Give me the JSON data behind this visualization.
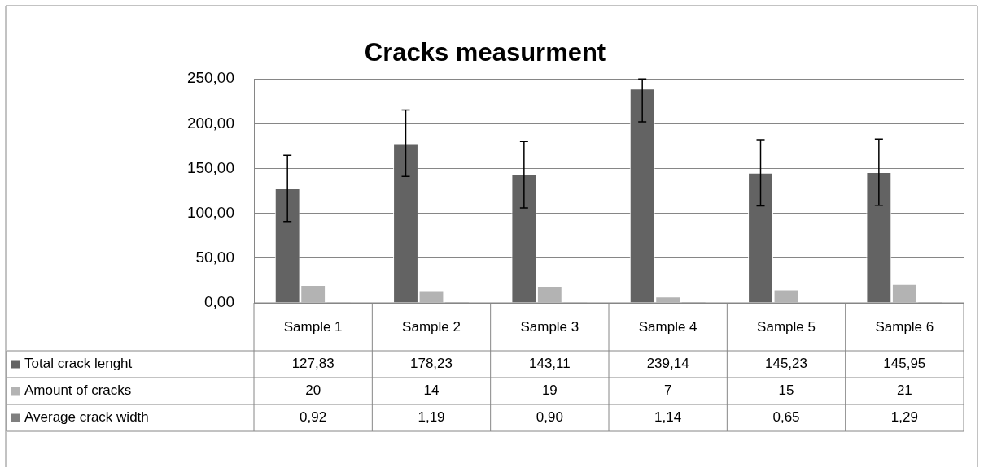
{
  "chart_data": {
    "type": "bar",
    "title": "Cracks measurment",
    "categories": [
      "Sample 1",
      "Sample 2",
      "Sample 3",
      "Sample 4",
      "Sample 5",
      "Sample 6"
    ],
    "series": [
      {
        "name": "Total crack lenght",
        "color": "#636363",
        "values": [
          127.83,
          178.23,
          143.11,
          239.14,
          145.23,
          145.95
        ],
        "errors": [
          37,
          37,
          37,
          [
            202.14,
            250
          ],
          37,
          37
        ],
        "value_labels": [
          "127,83",
          "178,23",
          "143,11",
          "239,14",
          "145,23",
          "145,95"
        ]
      },
      {
        "name": "Amount of cracks",
        "color": "#b3b3b3",
        "values": [
          20,
          14,
          19,
          7,
          15,
          21
        ],
        "value_labels": [
          "20",
          "14",
          "19",
          "7",
          "15",
          "21"
        ]
      },
      {
        "name": "Average crack width",
        "color": "#7f7f7f",
        "values": [
          0.92,
          1.19,
          0.9,
          1.14,
          0.65,
          1.29
        ],
        "value_labels": [
          "0,92",
          "1,19",
          "0,90",
          "1,14",
          "0,65",
          "1,29"
        ]
      }
    ],
    "ylim": [
      0,
      250
    ],
    "yticks": [
      {
        "value": 0,
        "label": "0,00"
      },
      {
        "value": 50,
        "label": "50,00"
      },
      {
        "value": 100,
        "label": "100,00"
      },
      {
        "value": 150,
        "label": "150,00"
      },
      {
        "value": 200,
        "label": "200,00"
      },
      {
        "value": 250,
        "label": "250,00"
      }
    ],
    "grid": "y",
    "legend": "bottom"
  }
}
